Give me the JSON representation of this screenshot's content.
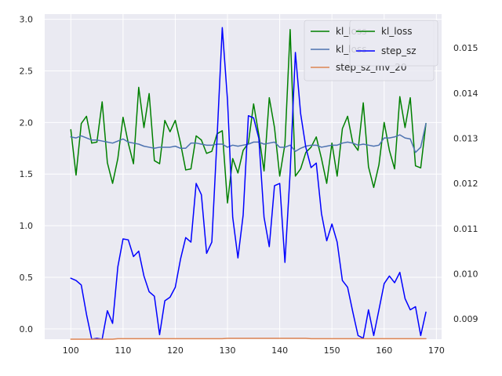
{
  "chart_data": {
    "type": "line",
    "grid": true,
    "x_ticks": [
      100,
      110,
      120,
      130,
      140,
      150,
      160,
      170
    ],
    "xlim": [
      95,
      171
    ],
    "left_axis": {
      "ylim": [
        -0.1,
        3.05
      ],
      "ticks": [
        0.0,
        0.5,
        1.0,
        1.5,
        2.0,
        2.5,
        3.0
      ],
      "tick_labels": [
        "0.0",
        "0.5",
        "1.0",
        "1.5",
        "2.0",
        "2.5",
        "3.0"
      ]
    },
    "right_axis": {
      "ylim": [
        0.00855,
        0.01575
      ],
      "ticks": [
        0.009,
        0.01,
        0.011,
        0.012,
        0.013,
        0.014,
        0.015
      ],
      "tick_labels": [
        "0.009",
        "0.010",
        "0.011",
        "0.012",
        "0.013",
        "0.014",
        "0.015"
      ]
    },
    "x": [
      100,
      101,
      102,
      103,
      104,
      105,
      106,
      107,
      108,
      109,
      110,
      111,
      112,
      113,
      114,
      115,
      116,
      117,
      118,
      119,
      120,
      121,
      122,
      123,
      124,
      125,
      126,
      127,
      128,
      129,
      130,
      131,
      132,
      133,
      134,
      135,
      136,
      137,
      138,
      139,
      140,
      141,
      142,
      143,
      144,
      145,
      146,
      147,
      148,
      149,
      150,
      151,
      152,
      153,
      154,
      155,
      156,
      157,
      158,
      159,
      160,
      161,
      162,
      163,
      164,
      165,
      166,
      167,
      168
    ],
    "series": [
      {
        "name": "kl_loss",
        "axis": "left",
        "color": "#008000",
        "values": [
          1.93,
          1.49,
          1.99,
          2.06,
          1.8,
          1.81,
          2.2,
          1.61,
          1.41,
          1.65,
          2.05,
          1.8,
          1.6,
          2.34,
          1.95,
          2.28,
          1.63,
          1.6,
          2.02,
          1.91,
          2.02,
          1.8,
          1.54,
          1.55,
          1.87,
          1.83,
          1.7,
          1.72,
          1.89,
          1.92,
          1.22,
          1.65,
          1.51,
          1.73,
          1.8,
          2.18,
          1.88,
          1.53,
          2.24,
          1.95,
          1.48,
          1.79,
          2.9,
          1.48,
          1.55,
          1.71,
          1.76,
          1.86,
          1.65,
          1.41,
          1.8,
          1.48,
          1.94,
          2.06,
          1.8,
          1.73,
          2.19,
          1.57,
          1.37,
          1.59,
          2.0,
          1.73,
          1.55,
          2.25,
          1.95,
          2.24,
          1.58,
          1.56,
          1.99
        ]
      },
      {
        "name": "kl_loss",
        "axis": "left",
        "color": "#4c72b0",
        "values": [
          1.86,
          1.85,
          1.87,
          1.85,
          1.83,
          1.83,
          1.82,
          1.81,
          1.8,
          1.82,
          1.84,
          1.81,
          1.8,
          1.79,
          1.77,
          1.76,
          1.75,
          1.76,
          1.76,
          1.76,
          1.77,
          1.75,
          1.75,
          1.8,
          1.8,
          1.79,
          1.78,
          1.78,
          1.79,
          1.79,
          1.76,
          1.78,
          1.77,
          1.78,
          1.79,
          1.81,
          1.81,
          1.79,
          1.8,
          1.81,
          1.76,
          1.76,
          1.78,
          1.72,
          1.75,
          1.77,
          1.78,
          1.78,
          1.76,
          1.77,
          1.78,
          1.78,
          1.8,
          1.81,
          1.8,
          1.78,
          1.79,
          1.78,
          1.77,
          1.78,
          1.85,
          1.85,
          1.86,
          1.88,
          1.85,
          1.84,
          1.71,
          1.76,
          1.99
        ]
      },
      {
        "name": "step_sz",
        "axis": "right",
        "color": "#0000ff",
        "values": [
          0.0099,
          0.00985,
          0.00975,
          0.0091,
          0.00855,
          0.00857,
          0.00855,
          0.00918,
          0.0089,
          0.01015,
          0.01077,
          0.01075,
          0.01038,
          0.0105,
          0.00995,
          0.0096,
          0.0095,
          0.00865,
          0.0094,
          0.00948,
          0.0097,
          0.01032,
          0.0108,
          0.0107,
          0.012,
          0.01175,
          0.01045,
          0.0107,
          0.013,
          0.01545,
          0.01385,
          0.01125,
          0.01035,
          0.0113,
          0.0135,
          0.01345,
          0.013,
          0.01125,
          0.0106,
          0.01195,
          0.012,
          0.01025,
          0.01225,
          0.0149,
          0.01355,
          0.0128,
          0.01235,
          0.01245,
          0.01133,
          0.01073,
          0.0111,
          0.0107,
          0.00985,
          0.0097,
          0.00915,
          0.00863,
          0.00857,
          0.0092,
          0.00863,
          0.0092,
          0.00978,
          0.00995,
          0.0098,
          0.01003,
          0.00945,
          0.0092,
          0.00927,
          0.00863,
          0.00915
        ]
      },
      {
        "name": "step_sz_mv_20",
        "axis": "right",
        "color": "#dd8452",
        "values": [
          0.00855,
          0.00855,
          0.00855,
          0.00855,
          0.00855,
          0.00855,
          0.00855,
          0.00855,
          0.00855,
          0.00856,
          0.00856,
          0.00856,
          0.00856,
          0.00856,
          0.00856,
          0.00856,
          0.00856,
          0.00856,
          0.00856,
          0.00856,
          0.00856,
          0.00856,
          0.00856,
          0.00856,
          0.00856,
          0.00856,
          0.00856,
          0.00856,
          0.00856,
          0.00856,
          0.00857,
          0.00857,
          0.00857,
          0.00857,
          0.00857,
          0.00857,
          0.00857,
          0.00857,
          0.00857,
          0.00857,
          0.00857,
          0.00857,
          0.00857,
          0.00857,
          0.00857,
          0.00857,
          0.00856,
          0.00856,
          0.00856,
          0.00856,
          0.00856,
          0.00856,
          0.00856,
          0.00856,
          0.00856,
          0.00856,
          0.00856,
          0.00856,
          0.00856,
          0.00856,
          0.00856,
          0.00856,
          0.00856,
          0.00856,
          0.00856,
          0.00856,
          0.00856,
          0.00856,
          0.00856
        ]
      }
    ],
    "legends": [
      {
        "placement": "upper-right-outer",
        "entries": [
          {
            "label": "kl_loss",
            "color": "#008000"
          },
          {
            "label": "kl_loss",
            "color": "#4c72b0"
          },
          {
            "label": "step_sz_mv_20",
            "color": "#dd8452"
          }
        ]
      },
      {
        "placement": "upper-right-inner",
        "entries": [
          {
            "label": "kl_loss",
            "color": "#008000"
          },
          {
            "label": "step_sz",
            "color": "#0000ff"
          }
        ]
      }
    ]
  }
}
